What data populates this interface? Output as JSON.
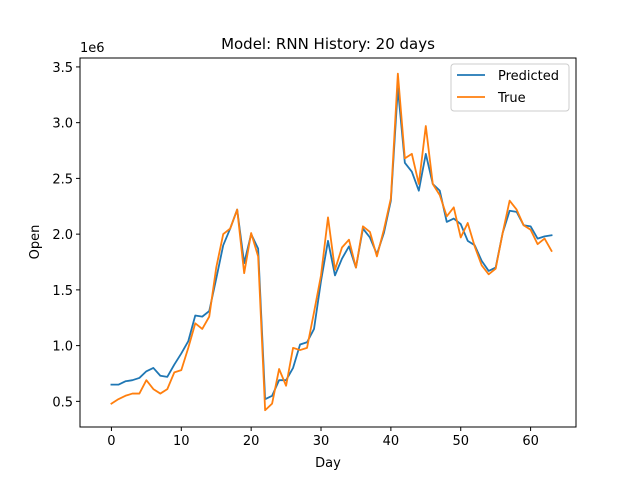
{
  "chart_data": {
    "type": "line",
    "title": "Model: RNN  History: 20 days",
    "xlabel": "Day",
    "ylabel": "Open",
    "y_multiplier": "1e6",
    "xlim": [
      -4.5,
      66.5
    ],
    "ylim": [
      0.27,
      3.58
    ],
    "xticks": [
      0,
      10,
      20,
      30,
      40,
      50,
      60
    ],
    "yticks": [
      0.5,
      1.0,
      1.5,
      2.0,
      2.5,
      3.0,
      3.5
    ],
    "legend_position": "upper right",
    "x": [
      0,
      1,
      2,
      3,
      4,
      5,
      6,
      7,
      8,
      9,
      10,
      11,
      12,
      13,
      14,
      15,
      16,
      17,
      18,
      19,
      20,
      21,
      22,
      23,
      24,
      25,
      26,
      27,
      28,
      29,
      30,
      31,
      32,
      33,
      34,
      35,
      36,
      37,
      38,
      39,
      40,
      41,
      42,
      43,
      44,
      45,
      46,
      47,
      48,
      49,
      50,
      51,
      52,
      53,
      54,
      55,
      56,
      57,
      58,
      59,
      60,
      61,
      62,
      63
    ],
    "series": [
      {
        "name": "Predicted",
        "color": "#1f77b4",
        "values": [
          0.65,
          0.65,
          0.68,
          0.69,
          0.71,
          0.77,
          0.8,
          0.73,
          0.72,
          0.83,
          0.93,
          1.04,
          1.27,
          1.26,
          1.31,
          1.6,
          1.9,
          2.05,
          2.22,
          1.74,
          2.0,
          1.87,
          0.52,
          0.55,
          0.69,
          0.69,
          0.8,
          1.01,
          1.03,
          1.15,
          1.58,
          1.94,
          1.63,
          1.78,
          1.89,
          1.7,
          2.05,
          1.97,
          1.82,
          2.01,
          2.3,
          3.31,
          2.64,
          2.56,
          2.39,
          2.72,
          2.45,
          2.39,
          2.11,
          2.14,
          2.09,
          1.94,
          1.9,
          1.76,
          1.67,
          1.7,
          2.01,
          2.21,
          2.2,
          2.08,
          2.07,
          1.96,
          1.98,
          1.99
        ]
      },
      {
        "name": "True",
        "color": "#ff7f0e",
        "values": [
          0.48,
          0.52,
          0.55,
          0.57,
          0.57,
          0.69,
          0.61,
          0.57,
          0.61,
          0.76,
          0.78,
          0.98,
          1.2,
          1.15,
          1.26,
          1.7,
          2.0,
          2.05,
          2.22,
          1.65,
          2.01,
          1.8,
          0.42,
          0.48,
          0.79,
          0.64,
          0.98,
          0.96,
          0.98,
          1.3,
          1.63,
          2.15,
          1.68,
          1.88,
          1.95,
          1.7,
          2.07,
          2.02,
          1.8,
          2.04,
          2.32,
          3.44,
          2.68,
          2.72,
          2.45,
          2.97,
          2.45,
          2.35,
          2.16,
          2.24,
          1.97,
          2.1,
          1.89,
          1.72,
          1.64,
          1.69,
          2.01,
          2.3,
          2.22,
          2.08,
          2.04,
          1.91,
          1.96,
          1.85
        ]
      }
    ]
  }
}
